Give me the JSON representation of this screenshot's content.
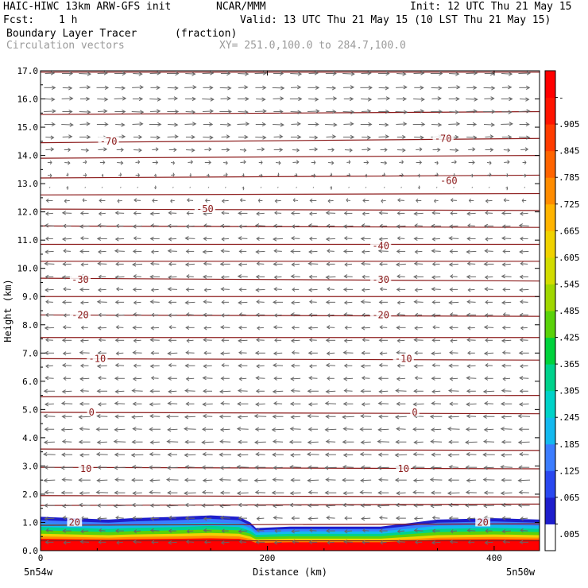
{
  "header": {
    "model": "HAIC-HIWC 13km ARW-GFS init",
    "org": "NCAR/MMM",
    "init": "Init: 12 UTC Thu 21 May 15",
    "fcst_label": "Fcst:",
    "fcst_value": "1 h",
    "valid": "Valid: 13 UTC Thu 21 May 15 (10 LST Thu 21 May 15)",
    "field": "Boundary Layer Tracer",
    "units": "(fraction)",
    "overlay": "Circulation vectors",
    "xy": "XY= 251.0,100.0 to 284.7,100.0"
  },
  "chart_data": {
    "type": "heatmap",
    "xlabel": "Distance (km)",
    "ylabel": "Height (km)",
    "xlim": [
      0,
      440
    ],
    "ylim": [
      0,
      17
    ],
    "x_ticks": [
      0,
      200,
      400
    ],
    "y_ticks": [
      "0.0",
      "1.0",
      "2.0",
      "3.0",
      "4.0",
      "5.0",
      "6.0",
      "7.0",
      "8.0",
      "9.0",
      "10.0",
      "11.0",
      "12.0",
      "13.0",
      "14.0",
      "15.0",
      "16.0",
      "17.0"
    ],
    "x_end_labels": {
      "left": "5n54w",
      "right": "5n50w"
    },
    "colorbar": {
      "labels": [
        ".005",
        ".065",
        ".125",
        ".185",
        ".245",
        ".305",
        ".365",
        ".425",
        ".485",
        ".545",
        ".605",
        ".665",
        ".725",
        ".785",
        ".845",
        ".905",
        "-"
      ],
      "colors": [
        "#ffffff",
        "#1e1ecc",
        "#2a48f0",
        "#3c7dff",
        "#14b9ef",
        "#00d2c8",
        "#00d28c",
        "#00d23c",
        "#5ad20a",
        "#a0d700",
        "#d2dc00",
        "#f0d200",
        "#ffb400",
        "#ff8c00",
        "#ff6400",
        "#ff3c00",
        "#ff1400",
        "#ff0000"
      ]
    },
    "tracer_top_km": [
      [
        0,
        1.2
      ],
      [
        30,
        1.15
      ],
      [
        60,
        1.1
      ],
      [
        80,
        1.15
      ],
      [
        120,
        1.2
      ],
      [
        150,
        1.25
      ],
      [
        175,
        1.2
      ],
      [
        185,
        1.0
      ],
      [
        190,
        0.8
      ],
      [
        220,
        0.85
      ],
      [
        260,
        0.85
      ],
      [
        300,
        0.85
      ],
      [
        330,
        1.0
      ],
      [
        350,
        1.1
      ],
      [
        400,
        1.15
      ],
      [
        440,
        1.1
      ]
    ],
    "contour_interval_c": 10,
    "contour_labels": [
      {
        "x": 30,
        "y": 1.0,
        "label": "20"
      },
      {
        "x": 390,
        "y": 1.0,
        "label": "20"
      },
      {
        "x": 40,
        "y": 2.9,
        "label": "10"
      },
      {
        "x": 320,
        "y": 2.9,
        "label": "10"
      },
      {
        "x": 45,
        "y": 4.9,
        "label": "0"
      },
      {
        "x": 330,
        "y": 4.9,
        "label": "0"
      },
      {
        "x": 50,
        "y": 6.8,
        "label": "-10"
      },
      {
        "x": 320,
        "y": 6.8,
        "label": "-10"
      },
      {
        "x": 35,
        "y": 8.35,
        "label": "-20"
      },
      {
        "x": 300,
        "y": 8.35,
        "label": "-20"
      },
      {
        "x": 35,
        "y": 9.6,
        "label": "-30"
      },
      {
        "x": 300,
        "y": 9.6,
        "label": "-30"
      },
      {
        "x": 300,
        "y": 10.8,
        "label": "-40"
      },
      {
        "x": 145,
        "y": 12.1,
        "label": "-50"
      },
      {
        "x": 360,
        "y": 13.1,
        "label": "-60"
      },
      {
        "x": 60,
        "y": 14.5,
        "label": "-70"
      },
      {
        "x": 355,
        "y": 14.6,
        "label": "-70"
      }
    ],
    "contour_levels_km": [
      [
        0.35,
        0.35
      ],
      [
        0.9,
        0.95
      ],
      [
        1.6,
        1.65
      ],
      [
        1.95,
        1.9
      ],
      [
        2.95,
        2.9
      ],
      [
        3.6,
        3.55
      ],
      [
        4.9,
        4.85
      ],
      [
        5.45,
        5.5
      ],
      [
        6.8,
        6.75
      ],
      [
        7.55,
        7.55
      ],
      [
        8.35,
        8.3
      ],
      [
        9.0,
        9.0
      ],
      [
        9.65,
        9.55
      ],
      [
        10.25,
        10.25
      ],
      [
        10.85,
        10.85
      ],
      [
        11.5,
        11.45
      ],
      [
        12.1,
        12.05
      ],
      [
        12.6,
        12.65
      ],
      [
        13.2,
        13.3
      ],
      [
        13.9,
        14.0
      ],
      [
        14.45,
        14.6
      ],
      [
        15.45,
        15.55
      ],
      [
        16.95,
        16.95
      ]
    ],
    "vector_rows_km": [
      {
        "y": 16.9,
        "u": 1.0
      },
      {
        "y": 16.4,
        "u": 1.0
      },
      {
        "y": 16.0,
        "u": 1.0
      },
      {
        "y": 15.55,
        "u": 1.0
      },
      {
        "y": 15.1,
        "u": 1.0
      },
      {
        "y": 14.65,
        "u": 0.9
      },
      {
        "y": 14.2,
        "u": 0.7
      },
      {
        "y": 13.75,
        "u": 0.45
      },
      {
        "y": 13.3,
        "u": 0.25
      },
      {
        "y": 12.85,
        "u": 0.05
      },
      {
        "y": 12.4,
        "u": -0.5
      },
      {
        "y": 11.95,
        "u": -0.75
      },
      {
        "y": 11.5,
        "u": -0.8
      },
      {
        "y": 11.05,
        "u": -0.8
      },
      {
        "y": 10.6,
        "u": -0.8
      },
      {
        "y": 10.15,
        "u": -0.8
      },
      {
        "y": 9.7,
        "u": -0.8
      },
      {
        "y": 9.25,
        "u": -0.75
      },
      {
        "y": 8.8,
        "u": -0.8
      },
      {
        "y": 8.35,
        "u": -0.75
      },
      {
        "y": 7.9,
        "u": -0.75
      },
      {
        "y": 7.45,
        "u": -0.75
      },
      {
        "y": 7.0,
        "u": -0.8
      },
      {
        "y": 6.55,
        "u": -0.8
      },
      {
        "y": 6.1,
        "u": -0.8
      },
      {
        "y": 5.65,
        "u": -0.9
      },
      {
        "y": 5.2,
        "u": -0.9
      },
      {
        "y": 4.75,
        "u": -1.0
      },
      {
        "y": 4.3,
        "u": -1.0
      },
      {
        "y": 3.85,
        "u": -1.0
      },
      {
        "y": 3.4,
        "u": -1.0
      },
      {
        "y": 2.95,
        "u": -1.0
      },
      {
        "y": 2.5,
        "u": -1.0
      },
      {
        "y": 2.05,
        "u": -1.0
      },
      {
        "y": 1.6,
        "u": -1.0
      },
      {
        "y": 1.15,
        "u": -0.8
      },
      {
        "y": 0.7,
        "u": -0.7
      },
      {
        "y": 0.3,
        "u": -0.7
      }
    ]
  }
}
